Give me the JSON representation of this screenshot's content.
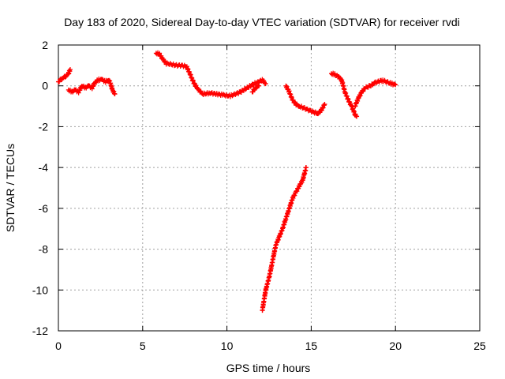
{
  "chart_data": {
    "type": "scatter",
    "title": "Day 183 of 2020, Sidereal Day-to-day VTEC variation (SDTVAR) for receiver rvdi",
    "xlabel": "GPS time / hours",
    "ylabel": "SDTVAR / TECUs",
    "xlim": [
      0,
      25
    ],
    "ylim": [
      -12,
      2
    ],
    "xticks": [
      0,
      5,
      10,
      15,
      20,
      25
    ],
    "yticks": [
      2,
      0,
      -2,
      -4,
      -6,
      -8,
      -10,
      -12
    ],
    "grid": true,
    "marker": "+",
    "color": "#ff0000",
    "series": [
      {
        "name": "SDTVAR",
        "segments": [
          [
            [
              0.0,
              0.2
            ],
            [
              0.15,
              0.3
            ],
            [
              0.3,
              0.4
            ],
            [
              0.45,
              0.5
            ],
            [
              0.6,
              0.6
            ],
            [
              0.7,
              0.8
            ]
          ],
          [
            [
              0.6,
              -0.2
            ],
            [
              0.8,
              -0.3
            ],
            [
              1.0,
              -0.2
            ],
            [
              1.2,
              -0.3
            ],
            [
              1.4,
              0.0
            ],
            [
              1.6,
              -0.1
            ],
            [
              1.8,
              0.0
            ],
            [
              2.0,
              -0.1
            ],
            [
              2.2,
              0.2
            ],
            [
              2.4,
              0.3
            ],
            [
              2.6,
              0.3
            ],
            [
              2.8,
              0.2
            ],
            [
              3.0,
              0.3
            ],
            [
              3.1,
              0.1
            ],
            [
              3.2,
              -0.2
            ],
            [
              3.35,
              -0.4
            ]
          ],
          [
            [
              5.8,
              1.6
            ],
            [
              6.0,
              1.55
            ],
            [
              6.2,
              1.3
            ],
            [
              6.4,
              1.1
            ],
            [
              6.7,
              1.05
            ],
            [
              7.0,
              1.0
            ],
            [
              7.3,
              1.0
            ],
            [
              7.6,
              0.95
            ],
            [
              7.8,
              0.6
            ],
            [
              8.0,
              0.2
            ],
            [
              8.3,
              -0.2
            ],
            [
              8.6,
              -0.4
            ],
            [
              9.0,
              -0.35
            ],
            [
              9.4,
              -0.4
            ],
            [
              9.8,
              -0.45
            ],
            [
              10.2,
              -0.5
            ],
            [
              10.5,
              -0.4
            ],
            [
              10.8,
              -0.3
            ],
            [
              11.2,
              -0.1
            ],
            [
              11.6,
              0.1
            ],
            [
              11.9,
              0.2
            ],
            [
              12.1,
              0.3
            ],
            [
              12.3,
              0.1
            ]
          ],
          [
            [
              11.5,
              -0.3
            ],
            [
              11.7,
              -0.1
            ],
            [
              11.9,
              0.0
            ]
          ],
          [
            [
              12.1,
              -11.0
            ],
            [
              12.3,
              -10.0
            ],
            [
              12.5,
              -9.4
            ],
            [
              12.7,
              -8.6
            ],
            [
              12.9,
              -7.8
            ],
            [
              13.1,
              -7.4
            ],
            [
              13.3,
              -7.0
            ],
            [
              13.5,
              -6.5
            ],
            [
              13.7,
              -6.0
            ],
            [
              13.9,
              -5.5
            ],
            [
              14.1,
              -5.2
            ],
            [
              14.3,
              -4.9
            ],
            [
              14.5,
              -4.6
            ],
            [
              14.6,
              -4.3
            ],
            [
              14.7,
              -4.0
            ]
          ],
          [
            [
              13.5,
              0.0
            ],
            [
              13.7,
              -0.3
            ],
            [
              13.9,
              -0.7
            ],
            [
              14.1,
              -0.9
            ],
            [
              14.3,
              -1.0
            ],
            [
              14.6,
              -1.1
            ],
            [
              14.9,
              -1.2
            ],
            [
              15.2,
              -1.3
            ],
            [
              15.4,
              -1.35
            ],
            [
              15.6,
              -1.2
            ],
            [
              15.8,
              -0.9
            ]
          ],
          [
            [
              16.2,
              0.6
            ],
            [
              16.4,
              0.55
            ],
            [
              16.6,
              0.45
            ],
            [
              16.8,
              0.3
            ],
            [
              17.0,
              -0.3
            ],
            [
              17.2,
              -0.7
            ],
            [
              17.4,
              -1.0
            ],
            [
              17.6,
              -1.4
            ],
            [
              17.7,
              -1.5
            ]
          ],
          [
            [
              17.6,
              -1.0
            ],
            [
              17.8,
              -0.6
            ],
            [
              18.0,
              -0.3
            ],
            [
              18.2,
              -0.1
            ],
            [
              18.5,
              0.0
            ],
            [
              18.8,
              0.15
            ],
            [
              19.1,
              0.25
            ],
            [
              19.3,
              0.25
            ],
            [
              19.6,
              0.15
            ],
            [
              19.8,
              0.1
            ],
            [
              20.0,
              0.05
            ]
          ]
        ]
      }
    ]
  }
}
